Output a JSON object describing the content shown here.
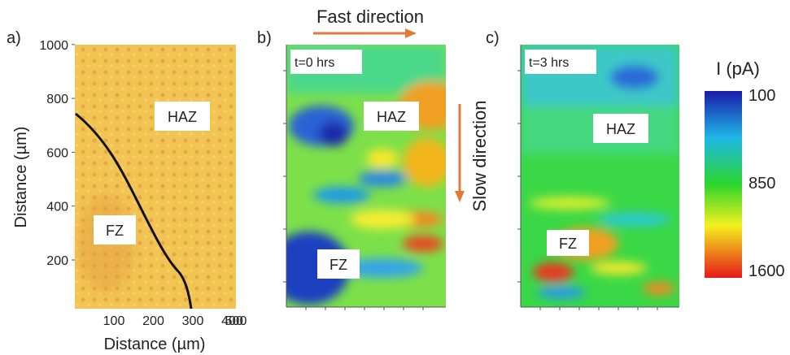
{
  "panels": [
    {
      "label": "a)",
      "x_axis_label": "Distance (µm)",
      "y_axis_label": "Distance (µm)",
      "xticks": [
        "100",
        "200",
        "300",
        "400",
        "500"
      ],
      "yticks": [
        "200",
        "400",
        "600",
        "800",
        "1000"
      ],
      "annotations": [
        "HAZ",
        "FZ"
      ]
    },
    {
      "label": "b)",
      "inset": "t=0 hrs",
      "annotations": [
        "HAZ",
        "FZ"
      ]
    },
    {
      "label": "c)",
      "inset": "t=3 hrs",
      "annotations": [
        "HAZ",
        "FZ"
      ]
    }
  ],
  "fast_direction": "Fast direction",
  "slow_direction": "Slow direction",
  "colorbar": {
    "title": "I (pA)",
    "ticks": [
      "100",
      "850",
      "1600"
    ]
  }
}
